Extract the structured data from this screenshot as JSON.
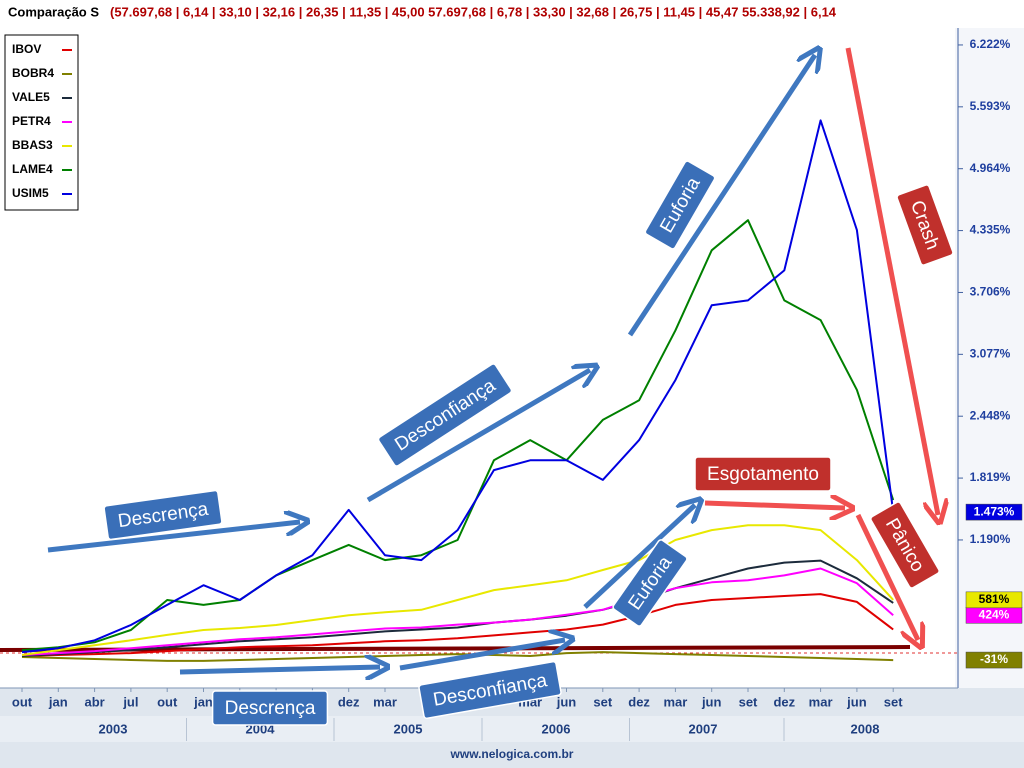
{
  "chart_data": {
    "type": "line",
    "title": "Comparação S",
    "subtitle": "(57.697,68 | 6,14 | 33,10 | 32,16 | 26,35 | 11,35 | 45,00  57.697,68 | 6,78 | 33,30 | 32,68 | 26,75 | 11,45 | 45,47  55.338,92 | 6,14",
    "categories": [
      "out",
      "jan",
      "abr",
      "jul",
      "out",
      "jan",
      null,
      null,
      null,
      "dez",
      "mar",
      null,
      null,
      null,
      "mar",
      "jun",
      "set",
      "dez",
      "mar",
      "jun",
      "set",
      "dez",
      "mar",
      "jun",
      "set"
    ],
    "years": [
      "2003",
      "2004",
      "2005",
      "2006",
      "2007",
      "2008"
    ],
    "series": [
      {
        "name": "IBOV",
        "color": "#e00000",
        "values": [
          10,
          20,
          30,
          40,
          60,
          80,
          100,
          110,
          120,
          140,
          160,
          170,
          190,
          220,
          250,
          280,
          330,
          420,
          530,
          580,
          600,
          620,
          640,
          560,
          280
        ]
      },
      {
        "name": "BOBR4",
        "color": "#808000",
        "values": [
          0,
          -10,
          -20,
          -30,
          -40,
          -40,
          -30,
          -20,
          -10,
          0,
          10,
          20,
          30,
          20,
          10,
          40,
          50,
          40,
          30,
          20,
          10,
          0,
          -10,
          -20,
          -31
        ],
        "value_labels": [
          null,
          null,
          null,
          null,
          null,
          null,
          null,
          null,
          null,
          null,
          null,
          null,
          null,
          null,
          null,
          null,
          null,
          null,
          null,
          null,
          null,
          null,
          null,
          null,
          "-31%"
        ]
      },
      {
        "name": "VALE5",
        "color": "#1c2b3c",
        "values": [
          10,
          30,
          50,
          70,
          100,
          130,
          160,
          180,
          200,
          230,
          260,
          280,
          300,
          350,
          380,
          420,
          480,
          580,
          700,
          800,
          900,
          960,
          980,
          800,
          550
        ]
      },
      {
        "name": "PETR4",
        "color": "#ff00ff",
        "values": [
          20,
          40,
          60,
          90,
          120,
          150,
          180,
          200,
          230,
          260,
          290,
          300,
          330,
          350,
          380,
          430,
          480,
          600,
          700,
          760,
          780,
          830,
          900,
          750,
          424
        ],
        "value_labels": [
          null,
          null,
          null,
          null,
          null,
          null,
          null,
          null,
          null,
          null,
          null,
          null,
          null,
          null,
          null,
          null,
          null,
          null,
          null,
          null,
          null,
          null,
          null,
          null,
          "424%"
        ]
      },
      {
        "name": "BBAS3",
        "color": "#e8e800",
        "values": [
          20,
          70,
          120,
          170,
          225,
          275,
          295,
          325,
          375,
          425,
          455,
          480,
          580,
          680,
          730,
          780,
          885,
          985,
          1190,
          1290,
          1340,
          1340,
          1290,
          985,
          581
        ],
        "value_labels": [
          null,
          null,
          null,
          null,
          null,
          null,
          null,
          null,
          null,
          null,
          null,
          null,
          null,
          null,
          null,
          null,
          null,
          null,
          null,
          null,
          null,
          null,
          null,
          null,
          "581%"
        ]
      },
      {
        "name": "LAME4",
        "color": "#008000",
        "values": [
          70,
          100,
          150,
          275,
          580,
          530,
          580,
          830,
          985,
          1140,
          985,
          1035,
          1190,
          2000,
          2205,
          2000,
          2410,
          2610,
          3320,
          4135,
          4440,
          3625,
          3425,
          2715,
          1595
        ]
      },
      {
        "name": "USIM5",
        "color": "#0000e0",
        "values": [
          50,
          90,
          170,
          325,
          530,
          730,
          580,
          830,
          1035,
          1495,
          1035,
          985,
          1290,
          1900,
          2000,
          2000,
          1800,
          2205,
          2815,
          3575,
          3625,
          3930,
          5455,
          4340,
          1473
        ],
        "value_labels": [
          null,
          null,
          null,
          null,
          null,
          null,
          null,
          null,
          null,
          null,
          null,
          null,
          null,
          null,
          null,
          null,
          null,
          null,
          null,
          null,
          null,
          null,
          null,
          null,
          "1.473%"
        ]
      }
    ],
    "ylim": [
      -315,
      6374
    ],
    "yticks": [
      {
        "value": 1190,
        "label": "1.190%"
      },
      {
        "value": 1819,
        "label": "1.819%"
      },
      {
        "value": 2448,
        "label": "2.448%"
      },
      {
        "value": 3077,
        "label": "3.077%"
      },
      {
        "value": 3706,
        "label": "3.706%"
      },
      {
        "value": 4335,
        "label": "4.335%"
      },
      {
        "value": 4964,
        "label": "4.964%"
      },
      {
        "value": 5593,
        "label": "5.593%"
      },
      {
        "value": 6222,
        "label": "6.222%"
      }
    ],
    "annotations": [
      "Descrença",
      "Desconfiança",
      "Euforia",
      "Crash",
      "Esgotamento",
      "Pânico",
      "Euforia",
      "Descrença",
      "Desconfiança"
    ],
    "footer": "www.nelogica.com.br"
  }
}
